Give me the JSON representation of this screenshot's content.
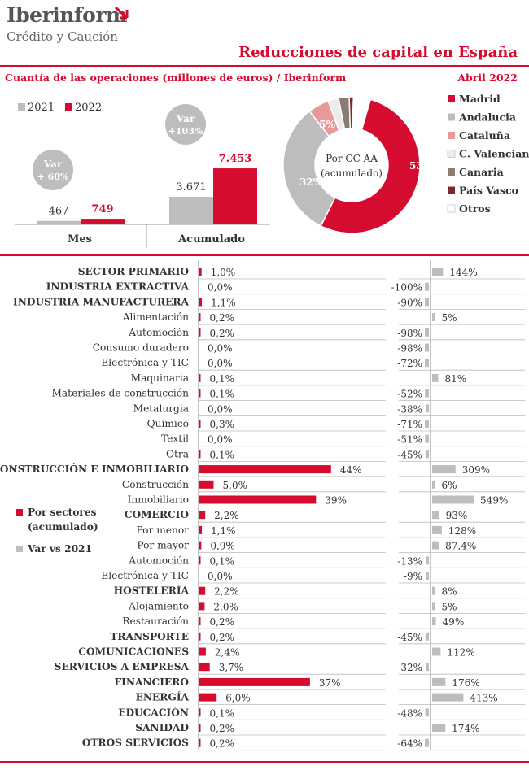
{
  "header": {
    "brand": "Iberinform",
    "brand_sub": "Crédito y Caución",
    "title": "Reducciones de capital en España",
    "subtitle": "Cuantía de las operaciones (millones de euros) / Iberinform",
    "date": "Abril 2022"
  },
  "colors": {
    "red": "#d50c2f",
    "gray": "#bdbdbd",
    "dark_gray": "#666666",
    "text": "#333333"
  },
  "chart_data": [
    {
      "type": "bar",
      "legend": [
        "2021",
        "2022"
      ],
      "categories": [
        "Mes",
        "Acumulado"
      ],
      "series": [
        {
          "name": "2021",
          "values": [
            467,
            3671
          ],
          "labels": [
            "467",
            "3.671"
          ]
        },
        {
          "name": "2022",
          "values": [
            749,
            7453
          ],
          "labels": [
            "749",
            "7.453"
          ]
        }
      ],
      "bubbles": [
        {
          "category": "Mes",
          "line1": "Var",
          "line2": "+ 60%"
        },
        {
          "category": "Acumulado",
          "line1": "Var",
          "line2": "+103%"
        }
      ]
    },
    {
      "type": "pie",
      "center_label": [
        "Por CC AA",
        "(acumulado)"
      ],
      "slices": [
        {
          "name": "Madrid",
          "value": 53,
          "label": "53%",
          "color": "#d50c2f"
        },
        {
          "name": "Andalucia",
          "value": 32,
          "label": "32%",
          "color": "#bdbdbd"
        },
        {
          "name": "Cataluña",
          "value": 5,
          "label": "5%",
          "color": "#e89a9a"
        },
        {
          "name": "C. Valenciana",
          "value": 2.5,
          "label": "",
          "color": "#ececec"
        },
        {
          "name": "Canaria",
          "value": 2.5,
          "label": "",
          "color": "#8c7b72"
        },
        {
          "name": "País Vasco",
          "value": 1,
          "label": "",
          "color": "#7a2a2a"
        },
        {
          "name": "Otros",
          "value": 4,
          "label": "",
          "color": "#ffffff"
        }
      ]
    },
    {
      "type": "bar",
      "legend": [
        "Por sectores\n(acumulado)",
        "Var vs 2021"
      ],
      "series_names": [
        "Por sectores (acumulado)",
        "Var vs 2021"
      ],
      "rows": [
        {
          "name": "SECTOR PRIMARIO",
          "main": true,
          "share": 1.0,
          "share_label": "1,0%",
          "var": 144,
          "var_label": "144%"
        },
        {
          "name": "INDUSTRIA EXTRACTIVA",
          "main": true,
          "share": 0.0,
          "share_label": "0,0%",
          "var": -100,
          "var_label": "-100%"
        },
        {
          "name": "INDUSTRIA MANUFACTURERA",
          "main": true,
          "share": 1.1,
          "share_label": "1,1%",
          "var": -90,
          "var_label": "-90%"
        },
        {
          "name": "Alimentación",
          "main": false,
          "share": 0.2,
          "share_label": "0,2%",
          "var": 5,
          "var_label": "5%"
        },
        {
          "name": "Automoción",
          "main": false,
          "share": 0.2,
          "share_label": "0,2%",
          "var": -98,
          "var_label": "-98%"
        },
        {
          "name": "Consumo duradero",
          "main": false,
          "share": 0.0,
          "share_label": "0,0%",
          "var": -98,
          "var_label": "-98%"
        },
        {
          "name": "Electrónica y TIC",
          "main": false,
          "share": 0.0,
          "share_label": "0,0%",
          "var": -72,
          "var_label": "-72%"
        },
        {
          "name": "Maquinaria",
          "main": false,
          "share": 0.1,
          "share_label": "0,1%",
          "var": 81,
          "var_label": "81%"
        },
        {
          "name": "Materiales de construcción",
          "main": false,
          "share": 0.1,
          "share_label": "0,1%",
          "var": -52,
          "var_label": "-52%"
        },
        {
          "name": "Metalurgia",
          "main": false,
          "share": 0.0,
          "share_label": "0,0%",
          "var": -38,
          "var_label": "-38%"
        },
        {
          "name": "Químico",
          "main": false,
          "share": 0.3,
          "share_label": "0,3%",
          "var": -71,
          "var_label": "-71%"
        },
        {
          "name": "Textil",
          "main": false,
          "share": 0.0,
          "share_label": "0,0%",
          "var": -51,
          "var_label": "-51%"
        },
        {
          "name": "Otra",
          "main": false,
          "share": 0.1,
          "share_label": "0,1%",
          "var": -45,
          "var_label": "-45%"
        },
        {
          "name": "CONSTRUCCIÓN E INMOBILIARIO",
          "main": true,
          "share": 44,
          "share_label": "44%",
          "var": 309,
          "var_label": "309%"
        },
        {
          "name": "Construcción",
          "main": false,
          "share": 5.0,
          "share_label": "5,0%",
          "var": 6,
          "var_label": "6%"
        },
        {
          "name": "Inmobiliario",
          "main": false,
          "share": 39,
          "share_label": "39%",
          "var": 549,
          "var_label": "549%"
        },
        {
          "name": "COMERCIO",
          "main": true,
          "share": 2.2,
          "share_label": "2,2%",
          "var": 93,
          "var_label": "93%"
        },
        {
          "name": "Por menor",
          "main": false,
          "share": 1.1,
          "share_label": "1,1%",
          "var": 128,
          "var_label": "128%"
        },
        {
          "name": "Por mayor",
          "main": false,
          "share": 0.9,
          "share_label": "0,9%",
          "var": 87.4,
          "var_label": "87,4%"
        },
        {
          "name": "Automoción",
          "main": false,
          "share": 0.1,
          "share_label": "0,1%",
          "var": -13,
          "var_label": "-13%"
        },
        {
          "name": "Electrónica y TIC",
          "main": false,
          "share": 0.0,
          "share_label": "0,0%",
          "var": -9,
          "var_label": "-9%"
        },
        {
          "name": "HOSTELERÍA",
          "main": true,
          "share": 2.2,
          "share_label": "2,2%",
          "var": 8,
          "var_label": "8%"
        },
        {
          "name": "Alojamiento",
          "main": false,
          "share": 2.0,
          "share_label": "2,0%",
          "var": 5,
          "var_label": "5%"
        },
        {
          "name": "Restauración",
          "main": false,
          "share": 0.2,
          "share_label": "0,2%",
          "var": 49,
          "var_label": "49%"
        },
        {
          "name": "TRANSPORTE",
          "main": true,
          "share": 0.2,
          "share_label": "0,2%",
          "var": -45,
          "var_label": "-45%"
        },
        {
          "name": "COMUNICACIONES",
          "main": true,
          "share": 2.4,
          "share_label": "2,4%",
          "var": 112,
          "var_label": "112%"
        },
        {
          "name": "SERVICIOS A EMPRESA",
          "main": true,
          "share": 3.7,
          "share_label": "3,7%",
          "var": -32,
          "var_label": "-32%"
        },
        {
          "name": "FINANCIERO",
          "main": true,
          "share": 37,
          "share_label": "37%",
          "var": 176,
          "var_label": "176%"
        },
        {
          "name": "ENERGÍA",
          "main": true,
          "share": 6.0,
          "share_label": "6,0%",
          "var": 413,
          "var_label": "413%"
        },
        {
          "name": "EDUCACIÓN",
          "main": true,
          "share": 0.1,
          "share_label": "0,1%",
          "var": -48,
          "var_label": "-48%"
        },
        {
          "name": "SANIDAD",
          "main": true,
          "share": 0.2,
          "share_label": "0,2%",
          "var": 174,
          "var_label": "174%"
        },
        {
          "name": "OTROS SERVICIOS",
          "main": true,
          "share": 0.2,
          "share_label": "0,2%",
          "var": -64,
          "var_label": "-64%"
        }
      ]
    }
  ]
}
